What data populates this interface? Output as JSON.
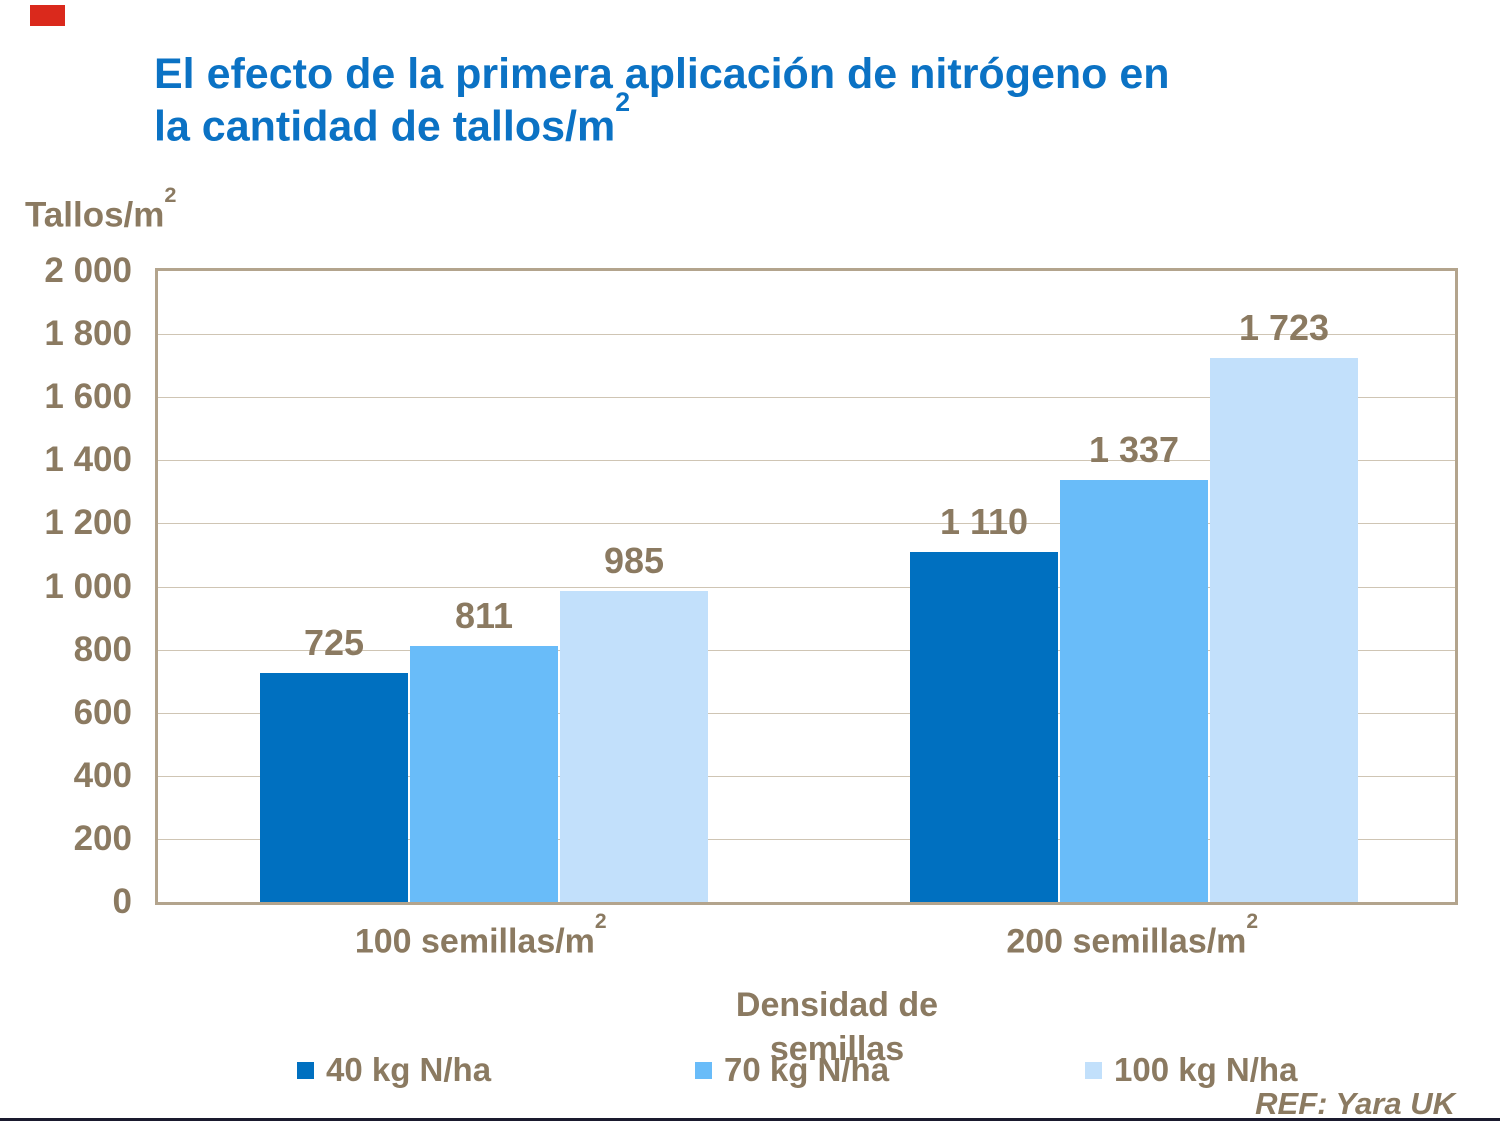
{
  "brand": {
    "accent_color": "#DA291C"
  },
  "title": {
    "line1": "El efecto de la primera aplicación de nitrógeno en",
    "line2": "la cantidad de tallos/m",
    "line2_sup": "2",
    "color": "#0B72C4"
  },
  "y_axis": {
    "title": "Tallos/m",
    "title_sup": "2",
    "ticks": [
      "2 000",
      "1 800",
      "1 600",
      "1 400",
      "1 200",
      "1 000",
      "800",
      "600",
      "400",
      "200",
      "0"
    ],
    "min": 0,
    "max": 2000,
    "step": 200
  },
  "x_axis": {
    "title_line1": "Densidad de",
    "title_line2": "semillas",
    "categories": [
      {
        "text": "100 semillas/m",
        "sup": "2"
      },
      {
        "text": "200 semillas/m",
        "sup": "2"
      }
    ]
  },
  "chart_data": {
    "type": "bar",
    "title": "El efecto de la primera aplicación de nitrógeno en la cantidad de tallos/m2",
    "categories": [
      "100 semillas/m2",
      "200 semillas/m2"
    ],
    "series": [
      {
        "name": "40 kg N/ha",
        "color": "#0070C0",
        "values": [
          725,
          1110
        ],
        "labels": [
          "725",
          "1 110"
        ]
      },
      {
        "name": "70 kg N/ha",
        "color": "#69BCF9",
        "values": [
          811,
          1337
        ],
        "labels": [
          "811",
          "1 337"
        ]
      },
      {
        "name": "100 kg N/ha",
        "color": "#C2E0FB",
        "values": [
          985,
          1723
        ],
        "labels": [
          "985",
          "1 723"
        ]
      }
    ],
    "ylabel": "Tallos/m2",
    "xlabel": "Densidad de semillas",
    "ylim": [
      0,
      2000
    ],
    "grid": true,
    "legend_position": "bottom"
  },
  "legend": {
    "items": [
      {
        "label": "40 kg N/ha",
        "color": "#0070C0"
      },
      {
        "label": "70 kg N/ha",
        "color": "#69BCF9"
      },
      {
        "label": "100 kg N/ha",
        "color": "#C2E0FB"
      }
    ]
  },
  "footer": {
    "ref": "REF: Yara UK"
  },
  "colors": {
    "text": "#8B7A61",
    "grid": "#CFC5B4",
    "plot_border": "#B3A48D",
    "bottom_line": "#1A1A2E"
  }
}
